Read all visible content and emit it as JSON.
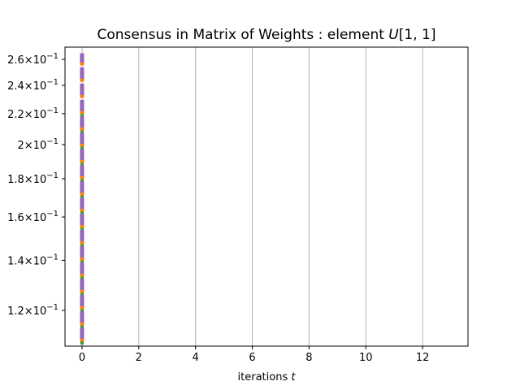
{
  "chart_data": {
    "type": "line",
    "title": "Consensus in Matrix of Weights : element U[1, 1]",
    "title_parts": {
      "prefix": "Consensus in Matrix of Weights : element ",
      "var": "U",
      "suffix": "[1, 1]"
    },
    "xlabel": "iterations t",
    "xlabel_parts": {
      "prefix": "iterations ",
      "var": "t"
    },
    "ylabel": "",
    "yscale": "log",
    "xlim": [
      -0.6,
      13.6
    ],
    "ylim": [
      0.1075,
      0.27
    ],
    "grid_x": true,
    "x_ticks": [
      0,
      2,
      4,
      6,
      8,
      10,
      12
    ],
    "x_tick_labels": [
      "0",
      "2",
      "4",
      "6",
      "8",
      "10",
      "12"
    ],
    "y_ticks": [
      0.12,
      0.14,
      0.16,
      0.18,
      0.2,
      0.22,
      0.24,
      0.26
    ],
    "y_tick_labels": [
      {
        "mant": "1.2",
        "base": "10",
        "exp": "−1"
      },
      {
        "mant": "1.4",
        "base": "10",
        "exp": "−1"
      },
      {
        "mant": "1.6",
        "base": "10",
        "exp": "−1"
      },
      {
        "mant": "1.8",
        "base": "10",
        "exp": "−1"
      },
      {
        "mant": "2",
        "base": "10",
        "exp": "−1"
      },
      {
        "mant": "2.2",
        "base": "10",
        "exp": "−1"
      },
      {
        "mant": "2.4",
        "base": "10",
        "exp": "−1"
      },
      {
        "mant": "2.6",
        "base": "10",
        "exp": "−1"
      }
    ],
    "series": [
      {
        "color": "#2ca02c",
        "style": "dashed",
        "width": 4,
        "x": [
          0,
          0
        ],
        "y": [
          0.108,
          0.22
        ]
      },
      {
        "color": "#ff7f0e",
        "style": "dashed",
        "width": 5,
        "x": [
          0,
          0
        ],
        "y": [
          0.109,
          0.262
        ]
      },
      {
        "color": "#9467bd",
        "style": "dashed",
        "width": 5,
        "x": [
          0,
          0
        ],
        "y": [
          0.11,
          0.265
        ]
      }
    ],
    "colors": {
      "grid": "#b0b0b0",
      "axis": "#000000"
    }
  }
}
